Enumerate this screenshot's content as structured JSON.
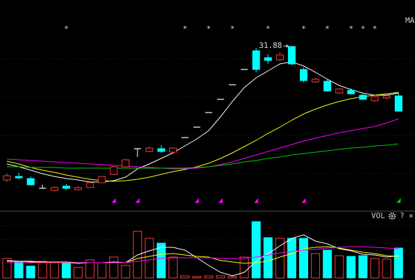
{
  "chart_data": [
    {
      "type": "candlestick",
      "label": "MA",
      "open": [
        12.6,
        13.1,
        12.8,
        11.4,
        11.1,
        11.7,
        11.2,
        11.5,
        12.2,
        13.4,
        14.5,
        17.1,
        16.7,
        17.1,
        16.6,
        18.7,
        20.2,
        22.3,
        24.2,
        26.3,
        28.5,
        31.2,
        30.2,
        29.9,
        31.8,
        28.5,
        26.7,
        26.8,
        25.1,
        25.5,
        24.8,
        24.0,
        24.4,
        24.7
      ],
      "high": [
        13.5,
        13.6,
        13.1,
        11.9,
        11.7,
        12.0,
        11.7,
        12.3,
        13.2,
        14.6,
        15.6,
        17.1,
        17.4,
        17.6,
        17.3,
        18.7,
        20.2,
        22.3,
        24.2,
        26.3,
        28.5,
        31.6,
        30.7,
        31.0,
        31.88,
        28.8,
        27.3,
        27.1,
        25.8,
        25.8,
        25.0,
        24.8,
        24.9,
        25.1
      ],
      "low": [
        12.3,
        12.7,
        11.8,
        11.4,
        10.9,
        11.2,
        11.1,
        11.5,
        12.2,
        13.3,
        14.5,
        15.9,
        16.6,
        16.5,
        16.5,
        18.7,
        20.2,
        22.3,
        24.2,
        26.3,
        28.5,
        28.1,
        29.3,
        29.7,
        29.1,
        26.7,
        26.6,
        25.3,
        25.0,
        24.9,
        24.1,
        23.9,
        24.2,
        22.4
      ],
      "close": [
        13.2,
        12.9,
        11.9,
        11.4,
        11.5,
        11.4,
        11.5,
        12.2,
        13.1,
        14.5,
        15.5,
        17.1,
        17.2,
        16.7,
        17.2,
        18.7,
        20.2,
        22.3,
        24.2,
        26.3,
        28.5,
        28.5,
        29.8,
        30.6,
        29.3,
        26.9,
        27.1,
        25.4,
        25.7,
        25.0,
        24.2,
        24.6,
        24.7,
        22.5
      ],
      "up_color": "#ff3c3c",
      "down_color": "#00ffff",
      "flat_color": "#ffffff",
      "ylim": [
        8.5,
        38.5
      ],
      "flags": [
        null,
        null,
        null,
        null,
        null,
        "*",
        null,
        null,
        null,
        null,
        null,
        null,
        null,
        null,
        null,
        "*",
        null,
        "*",
        null,
        "*",
        null,
        null,
        "*",
        null,
        null,
        "*",
        null,
        "*",
        null,
        "*",
        "*",
        "*",
        null,
        null
      ],
      "signal_colors": [
        null,
        null,
        null,
        null,
        null,
        null,
        null,
        null,
        null,
        "#ff00ff",
        null,
        "#ff00ff",
        null,
        null,
        null,
        null,
        "#ff00ff",
        null,
        "#ff00ff",
        null,
        null,
        "#ff00ff",
        null,
        null,
        null,
        "#ff00ff",
        null,
        null,
        null,
        null,
        null,
        null,
        null,
        "#00cc00"
      ],
      "lines": [
        {
          "color": "#ffffff",
          "values": [
            14.9,
            14.5,
            14.0,
            13.5,
            13.1,
            12.8,
            12.6,
            12.3,
            12.3,
            12.5,
            13.0,
            14.2,
            14.9,
            15.7,
            16.5,
            17.5,
            18.5,
            19.7,
            21.7,
            23.9,
            25.9,
            27.3,
            28.3,
            29.3,
            29.6,
            29.0,
            28.1,
            27.1,
            26.2,
            25.6,
            25.1,
            24.8,
            24.8,
            25.1
          ]
        },
        {
          "color": "#ffff00",
          "values": [
            15.3,
            14.9,
            14.4,
            14.0,
            13.7,
            13.3,
            13.0,
            12.7,
            12.5,
            12.4,
            12.5,
            12.7,
            13.0,
            13.4,
            13.8,
            14.1,
            14.5,
            15.0,
            15.7,
            16.5,
            17.4,
            18.3,
            19.3,
            20.2,
            21.2,
            22.1,
            22.8,
            23.4,
            23.9,
            24.3,
            24.6,
            24.8,
            25.0,
            25.2
          ]
        },
        {
          "color": "#ff00ff",
          "values": [
            15.6,
            15.5,
            15.4,
            15.3,
            15.2,
            15.1,
            15.0,
            14.9,
            14.8,
            14.7,
            14.6,
            14.5,
            14.4,
            14.3,
            14.2,
            14.2,
            14.3,
            14.5,
            14.8,
            15.2,
            15.7,
            16.2,
            16.7,
            17.2,
            17.7,
            18.2,
            18.6,
            19.0,
            19.4,
            19.7,
            20.0,
            20.3,
            20.8,
            21.4
          ]
        },
        {
          "color": "#00cc00",
          "values": [
            14.5,
            14.5,
            14.4,
            14.4,
            14.4,
            14.3,
            14.3,
            14.3,
            14.3,
            14.3,
            14.3,
            14.3,
            14.3,
            14.3,
            14.3,
            14.3,
            14.4,
            14.5,
            14.7,
            14.9,
            15.2,
            15.4,
            15.7,
            15.9,
            16.2,
            16.4,
            16.6,
            16.8,
            17.0,
            17.2,
            17.3,
            17.5,
            17.6,
            17.8
          ]
        }
      ]
    },
    {
      "type": "bar",
      "title": "VOL",
      "help": "?",
      "close_icon": "×",
      "values": [
        28,
        24,
        17,
        24,
        23,
        22,
        15,
        26,
        22,
        30,
        18,
        67,
        57,
        50,
        30,
        3,
        2,
        3,
        3,
        2,
        30,
        81,
        58,
        57,
        57,
        57,
        35,
        40,
        32,
        31,
        32,
        28,
        27,
        43
      ],
      "ylim": [
        0,
        95
      ],
      "lines": [
        {
          "color": "#ffffff",
          "values": [
            25,
            24,
            24,
            23,
            22,
            22,
            21,
            22,
            22,
            23,
            22,
            33,
            39,
            44,
            44,
            40,
            29,
            18,
            8,
            3,
            8,
            24,
            35,
            46,
            57,
            62,
            53,
            49,
            42,
            39,
            34,
            33,
            30,
            32
          ]
        },
        {
          "color": "#ffff00",
          "values": [
            24,
            24,
            23,
            23,
            23,
            23,
            22,
            22,
            22,
            22,
            22,
            28,
            31,
            34,
            35,
            33,
            31,
            30,
            25,
            23,
            21,
            22,
            24,
            30,
            35,
            42,
            44,
            45,
            43,
            40,
            37,
            35,
            32,
            31
          ]
        },
        {
          "color": "#ff00ff",
          "values": [
            22,
            22,
            22,
            22,
            22,
            22,
            22,
            22,
            22,
            22,
            22,
            24,
            26,
            28,
            29,
            29,
            29,
            29,
            28,
            28,
            28,
            30,
            33,
            36,
            38,
            40,
            41,
            43,
            44,
            45,
            45,
            44,
            43,
            42
          ]
        }
      ]
    }
  ]
}
